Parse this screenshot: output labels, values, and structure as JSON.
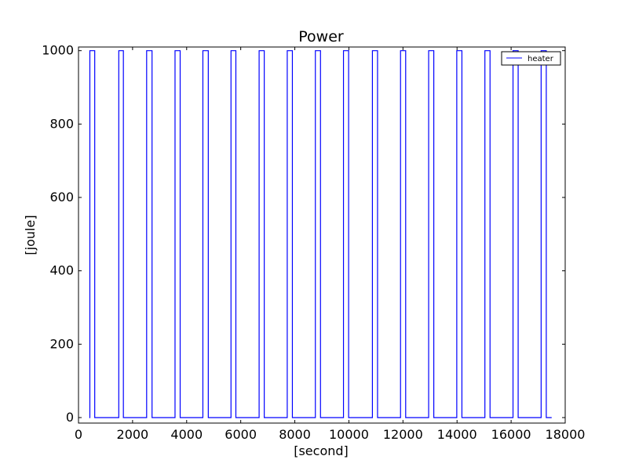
{
  "chart_data": {
    "type": "line",
    "title": "Power",
    "xlabel": "[second]",
    "ylabel": "[joule]",
    "xlim": [
      0,
      18000
    ],
    "ylim": [
      -15,
      1010
    ],
    "xticks": [
      0,
      2000,
      4000,
      6000,
      8000,
      10000,
      12000,
      14000,
      16000,
      18000
    ],
    "yticks": [
      0,
      200,
      400,
      600,
      800,
      1000
    ],
    "xtick_labels": [
      "0",
      "2000",
      "4000",
      "6000",
      "8000",
      "10000",
      "12000",
      "14000",
      "16000",
      "18000"
    ],
    "ytick_labels": [
      "0",
      "200",
      "400",
      "600",
      "800",
      "1000"
    ],
    "grid": false,
    "legend_position": "top-right",
    "colors": {
      "heater": "#0000ff",
      "axes": "#000000",
      "background": "#ffffff"
    },
    "series": [
      {
        "name": "heater",
        "step": true,
        "on_value": 1000,
        "off_value": 0,
        "x_start": 400,
        "x_end": 17500,
        "on_intervals": [
          [
            420,
            600
          ],
          [
            1490,
            1660
          ],
          [
            2520,
            2720
          ],
          [
            3570,
            3760
          ],
          [
            4600,
            4800
          ],
          [
            5640,
            5820
          ],
          [
            6680,
            6870
          ],
          [
            7720,
            7910
          ],
          [
            8760,
            8950
          ],
          [
            9800,
            9990
          ],
          [
            10870,
            11060
          ],
          [
            11910,
            12100
          ],
          [
            12950,
            13140
          ],
          [
            13990,
            14180
          ],
          [
            15030,
            15220
          ],
          [
            16070,
            16260
          ],
          [
            17110,
            17300
          ]
        ]
      }
    ]
  }
}
